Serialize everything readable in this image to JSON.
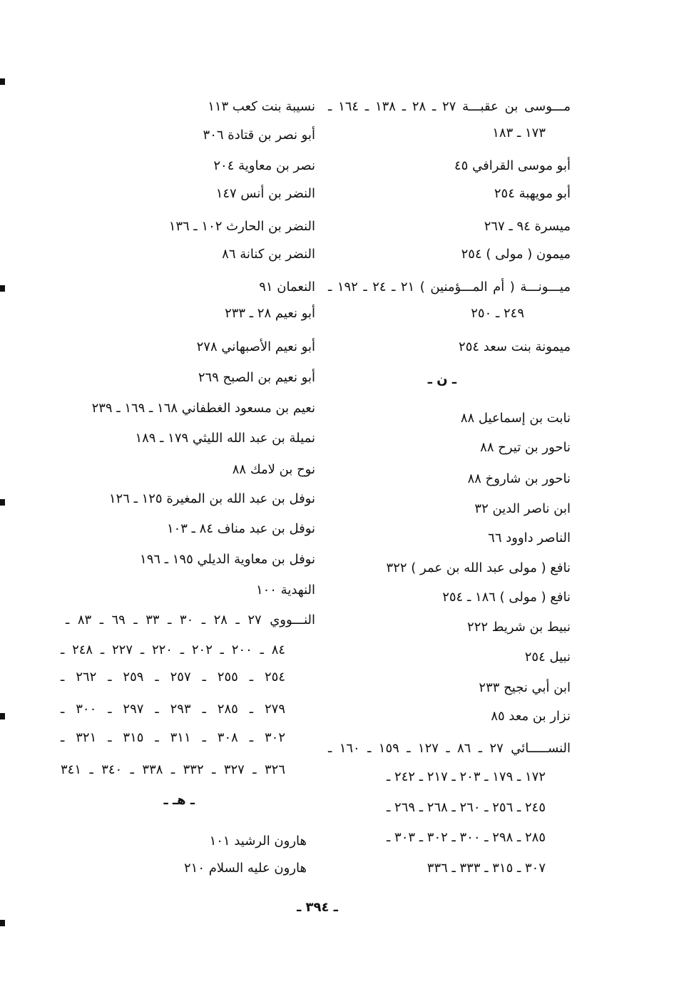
{
  "right_column": [
    "مـــوسى بن عقبـــة ٢٧ ـ ٢٨ ـ ١٣٨ ـ ١٦٤ ـ",
    "١٧٣ ـ ١٨٣",
    "أبو موسى القرافي ٤٥",
    "أبو مويهبة ٢٥٤",
    "ميسرة ٩٤ ـ ٢٦٧",
    "ميمون ( مولى ) ٢٥٤",
    "ميـــونـــة ( أم المـــؤمنين ) ٢١ ـ ٢٤ ـ ١٩٢ ـ",
    "٢٤٩ ـ ٢٥٠",
    "ميمونة بنت سعد ٢٥٤",
    "ـ ن ـ",
    "نابت بن إسماعيل ٨٨",
    "ناحور بن تيرح ٨٨",
    "ناحور بن شاروخ ٨٨",
    "ابن ناصر الدين ٣٢",
    "الناصر داوود ٦٦",
    "نافع ( مولى عبد الله بن عمر ) ٣٢٢",
    "نافع ( مولى ) ١٨٦ ـ ٢٥٤",
    "نبيط بن شريط ٢٢٢",
    "نبيل ٢٥٤",
    "ابن أبي نجيح ٢٣٣",
    "نزار بن معد ٨٥",
    "النســـــائي ٢٧ ـ ٨٦ ـ ١٢٧ ـ ١٥٩ ـ ١٦٠ ـ",
    "١٧٢ ـ ١٧٩ ـ ٢٠٣ ـ ٢١٧ ـ ٢٤٢ ـ",
    "٢٤٥ ـ ٢٥٦ ـ ٢٦٠ ـ ٢٦٨ ـ ٢٦٩ ـ",
    "٢٨٥ ـ ٢٩٨ ـ ٣٠٠ ـ ٣٠٢ ـ ٣٠٣ ـ",
    "٣٠٧ ـ ٣١٥ ـ ٣٣٣ ـ ٣٣٦"
  ],
  "left_column": [
    "نسيبة بنت كعب ١١٣",
    "أبو نصر بن قتادة ٣٠٦",
    "نصر بن معاوية ٢٠٤",
    "النضر بن أنس ١٤٧",
    "النضر بن الحارث ١٠٢ ـ ١٣٦",
    "النضر بن كنانة ٨٦",
    "النعمان ٩١",
    "أبو نعيم ٢٨ ـ ٢٣٣",
    "أبو نعيم الأصبهاني ٢٧٨",
    "أبو نعيم بن الصبح ٢٦٩",
    "نعيم بن مسعود الغطفاني ١٦٨ ـ ١٦٩ ـ ٢٣٩",
    "نميلة بن عبد الله الليثي ١٧٩ ـ ١٨٩",
    "نوح بن لامك ٨٨",
    "نوفل بن عبد الله بن المغيرة ١٢٥ ـ ١٢٦",
    "نوفل بن عبد مناف ٨٤ ـ ١٠٣",
    "نوفل بن معاوية الديلي ١٩٥ ـ ١٩٦",
    "النهدية ١٠٠",
    "النـــووي ٢٧ ـ ٢٨ ـ ٣٠ ـ ٣٣ ـ ٦٩ ـ ٨٣ ـ",
    "٨٤ ـ ٢٠٠ ـ ٢٠٢ ـ ٢٢٠ ـ ٢٢٧ ـ ٢٤٨ ـ",
    "٢٥٤ ـ ٢٥٥ ـ ٢٥٧ ـ ٢٥٩ ـ ٢٦٢ ـ",
    "٢٧٩ ـ ٢٨٥ ـ ٢٩٣ ـ ٢٩٧ ـ ٣٠٠ ـ",
    "٣٠٢ ـ ٣٠٨ ـ ٣١١ ـ ٣١٥ ـ ٣٢١ ـ",
    "٣٢٦ ـ ٣٢٧ ـ ٣٣٢ ـ ٣٣٨ ـ ٣٤٠ ـ ٣٤١",
    "ـ هـ ـ",
    "هارون الرشيد ١٠١",
    "هارون عليه السلام ٢١٠"
  ],
  "page_number": "ـ ٣٩٤ ـ"
}
